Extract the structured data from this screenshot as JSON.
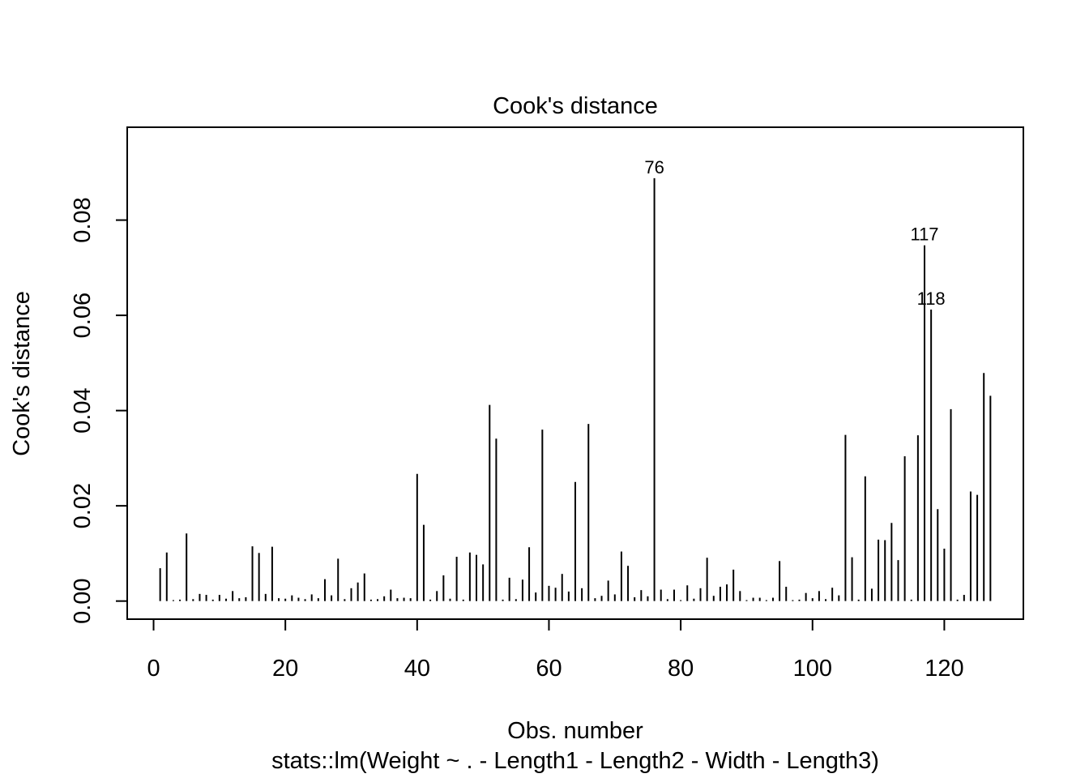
{
  "chart_data": {
    "type": "bar",
    "title": "Cook's distance",
    "xlabel": "Obs. number",
    "subtitle": "stats::lm(Weight ~ . - Length1 - Length2 - Width - Length3)",
    "ylabel": "Cook's distance",
    "xlim": [
      -4,
      132
    ],
    "ylim": [
      -0.0038,
      0.0995
    ],
    "x_ticks": [
      0,
      20,
      40,
      60,
      80,
      100,
      120
    ],
    "y_ticks": [
      0.0,
      0.02,
      0.04,
      0.06,
      0.08
    ],
    "x_tick_labels": [
      "0",
      "20",
      "40",
      "60",
      "80",
      "100",
      "120"
    ],
    "y_tick_labels": [
      "0.00",
      "0.02",
      "0.04",
      "0.06",
      "0.08"
    ],
    "grid": false,
    "x": [
      1,
      2,
      3,
      4,
      5,
      6,
      7,
      8,
      9,
      10,
      11,
      12,
      13,
      14,
      15,
      16,
      17,
      18,
      19,
      20,
      21,
      22,
      23,
      24,
      25,
      26,
      27,
      28,
      29,
      30,
      31,
      32,
      33,
      34,
      35,
      36,
      37,
      38,
      39,
      40,
      41,
      42,
      43,
      44,
      45,
      46,
      47,
      48,
      49,
      50,
      51,
      52,
      53,
      54,
      55,
      56,
      57,
      58,
      59,
      60,
      61,
      62,
      63,
      64,
      65,
      66,
      67,
      68,
      69,
      70,
      71,
      72,
      73,
      74,
      75,
      76,
      77,
      78,
      79,
      80,
      81,
      82,
      83,
      84,
      85,
      86,
      87,
      88,
      89,
      90,
      91,
      92,
      93,
      94,
      95,
      96,
      97,
      98,
      99,
      100,
      101,
      102,
      103,
      104,
      105,
      106,
      107,
      108,
      109,
      110,
      111,
      112,
      113,
      114,
      115,
      116,
      117,
      118,
      119,
      120,
      121,
      122,
      123,
      124,
      125,
      126,
      127
    ],
    "values": [
      0.0069,
      0.0102,
      0.0002,
      0.0003,
      0.0142,
      0.0004,
      0.0015,
      0.0013,
      0.0003,
      0.0013,
      0.0005,
      0.0021,
      0.0006,
      0.0008,
      0.0115,
      0.0101,
      0.0015,
      0.0114,
      0.0006,
      0.0005,
      0.0012,
      0.0007,
      0.0004,
      0.0014,
      0.0006,
      0.0046,
      0.0012,
      0.0089,
      0.0004,
      0.0027,
      0.0039,
      0.0058,
      0.0003,
      0.0004,
      0.001,
      0.0024,
      0.0006,
      0.0007,
      0.0006,
      0.0267,
      0.016,
      0.0003,
      0.0021,
      0.0054,
      0.0005,
      0.0093,
      0.0003,
      0.0102,
      0.0097,
      0.0077,
      0.0412,
      0.0341,
      0.0003,
      0.0049,
      0.0004,
      0.0045,
      0.0113,
      0.0018,
      0.036,
      0.0032,
      0.0028,
      0.0057,
      0.002,
      0.025,
      0.0027,
      0.0372,
      0.0006,
      0.0011,
      0.0043,
      0.0014,
      0.0104,
      0.0074,
      0.0008,
      0.0023,
      0.001,
      0.0888,
      0.0024,
      0.0004,
      0.0024,
      0.0002,
      0.0033,
      0.0005,
      0.0027,
      0.0091,
      0.0011,
      0.003,
      0.0035,
      0.0066,
      0.0021,
      0.0002,
      0.0007,
      0.0007,
      0.0002,
      0.0007,
      0.0084,
      0.003,
      0.0002,
      0.0003,
      0.0017,
      0.0006,
      0.0021,
      0.0004,
      0.0028,
      0.0012,
      0.0349,
      0.0092,
      0.0003,
      0.0262,
      0.0026,
      0.0129,
      0.0128,
      0.0164,
      0.0086,
      0.0304,
      0.0003,
      0.0348,
      0.0747,
      0.0612,
      0.0193,
      0.011,
      0.0403,
      0.0003,
      0.0013,
      0.023,
      0.0223,
      0.0479,
      0.0431
    ],
    "labeled_points": [
      {
        "x": 76,
        "label": "76"
      },
      {
        "x": 117,
        "label": "117"
      },
      {
        "x": 118,
        "label": "118"
      }
    ]
  }
}
